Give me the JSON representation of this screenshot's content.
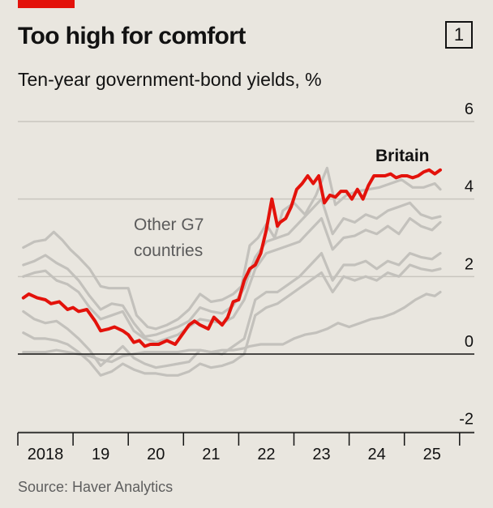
{
  "header": {
    "title": "Too high for comfort",
    "badge": "1",
    "subtitle": "Ten-year government-bond yields, %",
    "source": "Source: Haver Analytics"
  },
  "colors": {
    "britain": "#e3120b",
    "others": "#c3c1bc",
    "grid": "#c9c6bf",
    "zero": "#121212",
    "background": "#e9e6df"
  },
  "chart_data": {
    "type": "line",
    "title": "Too high for comfort",
    "subtitle": "Ten-year government-bond yields, %",
    "ylim": [
      -2,
      6
    ],
    "yticks": [
      -2,
      0,
      2,
      4,
      6
    ],
    "ytick_labels": [
      "-2",
      "0",
      "2",
      "4",
      "6"
    ],
    "xlim": [
      2018.0,
      2026.2
    ],
    "xticks": [
      2018,
      2019,
      2020,
      2021,
      2022,
      2023,
      2024,
      2025
    ],
    "xtick_labels": [
      "2018",
      "19",
      "20",
      "21",
      "22",
      "23",
      "24",
      "25"
    ],
    "grid": true,
    "legend": "none",
    "annotations": [
      "Britain",
      "Other G7 countries"
    ],
    "series": [
      {
        "name": "Britain",
        "highlight": true,
        "x": [
          2018.1,
          2018.2,
          2018.35,
          2018.5,
          2018.6,
          2018.75,
          2018.9,
          2019.0,
          2019.1,
          2019.25,
          2019.4,
          2019.5,
          2019.65,
          2019.75,
          2019.9,
          2020.0,
          2020.1,
          2020.2,
          2020.3,
          2020.4,
          2020.55,
          2020.7,
          2020.85,
          2021.0,
          2021.1,
          2021.2,
          2021.3,
          2021.45,
          2021.55,
          2021.7,
          2021.8,
          2021.9,
          2022.0,
          2022.1,
          2022.2,
          2022.3,
          2022.4,
          2022.5,
          2022.6,
          2022.7,
          2022.75,
          2022.85,
          2022.95,
          2023.05,
          2023.15,
          2023.25,
          2023.35,
          2023.45,
          2023.55,
          2023.65,
          2023.75,
          2023.85,
          2023.95,
          2024.05,
          2024.15,
          2024.25,
          2024.35,
          2024.45,
          2024.55,
          2024.65,
          2024.75,
          2024.85,
          2024.95,
          2025.05,
          2025.15,
          2025.25,
          2025.35,
          2025.45,
          2025.55,
          2025.65
        ],
        "values": [
          1.45,
          1.55,
          1.45,
          1.4,
          1.3,
          1.35,
          1.15,
          1.2,
          1.1,
          1.15,
          0.85,
          0.6,
          0.65,
          0.7,
          0.6,
          0.5,
          0.3,
          0.35,
          0.2,
          0.25,
          0.25,
          0.35,
          0.25,
          0.55,
          0.75,
          0.85,
          0.75,
          0.65,
          0.95,
          0.75,
          0.95,
          1.35,
          1.4,
          1.9,
          2.2,
          2.3,
          2.6,
          3.2,
          4.0,
          3.3,
          3.4,
          3.5,
          3.8,
          4.25,
          4.4,
          4.6,
          4.4,
          4.6,
          3.9,
          4.1,
          4.05,
          4.2,
          4.2,
          4.0,
          4.25,
          4.0,
          4.35,
          4.6,
          4.6,
          4.6,
          4.65,
          4.55,
          4.6,
          4.6,
          4.55,
          4.6,
          4.7,
          4.75,
          4.65,
          4.75
        ]
      },
      {
        "name": "",
        "x": [
          2018.1,
          2018.3,
          2018.5,
          2018.65,
          2018.8,
          2018.95,
          2019.1,
          2019.3,
          2019.5,
          2019.65,
          2019.8,
          2020.0,
          2020.15,
          2020.35,
          2020.5,
          2020.7,
          2020.9,
          2021.1,
          2021.3,
          2021.5,
          2021.7,
          2021.9,
          2022.05,
          2022.2,
          2022.35,
          2022.5,
          2022.65,
          2022.8,
          2023.0,
          2023.2,
          2023.4,
          2023.6,
          2023.75,
          2023.95,
          2024.15,
          2024.35,
          2024.55,
          2024.75,
          2024.95,
          2025.15,
          2025.35,
          2025.55,
          2025.65
        ],
        "values": [
          2.75,
          2.9,
          2.95,
          3.15,
          2.95,
          2.7,
          2.5,
          2.2,
          1.75,
          1.7,
          1.7,
          1.7,
          1.0,
          0.7,
          0.65,
          0.75,
          0.9,
          1.15,
          1.55,
          1.35,
          1.4,
          1.55,
          1.75,
          2.8,
          3.0,
          3.35,
          3.0,
          3.7,
          3.9,
          3.6,
          4.1,
          4.8,
          3.85,
          4.1,
          4.2,
          4.25,
          4.3,
          4.4,
          4.5,
          4.3,
          4.3,
          4.4,
          4.25
        ]
      },
      {
        "name": "",
        "x": [
          2018.1,
          2018.3,
          2018.5,
          2018.7,
          2018.9,
          2019.1,
          2019.3,
          2019.5,
          2019.7,
          2019.9,
          2020.1,
          2020.3,
          2020.5,
          2020.7,
          2020.9,
          2021.1,
          2021.3,
          2021.5,
          2021.7,
          2021.9,
          2022.1,
          2022.3,
          2022.5,
          2022.7,
          2022.9,
          2023.1,
          2023.3,
          2023.5,
          2023.7,
          2023.9,
          2024.1,
          2024.3,
          2024.5,
          2024.7,
          2024.9,
          2025.1,
          2025.3,
          2025.5,
          2025.65
        ],
        "values": [
          2.3,
          2.4,
          2.55,
          2.35,
          2.2,
          1.9,
          1.5,
          1.15,
          1.3,
          1.25,
          0.8,
          0.45,
          0.5,
          0.6,
          0.7,
          0.85,
          1.2,
          1.1,
          1.05,
          1.25,
          1.7,
          2.5,
          2.9,
          3.0,
          3.1,
          3.4,
          3.7,
          4.0,
          3.1,
          3.5,
          3.4,
          3.6,
          3.5,
          3.7,
          3.8,
          3.9,
          3.6,
          3.5,
          3.55
        ]
      },
      {
        "name": "",
        "x": [
          2018.1,
          2018.3,
          2018.5,
          2018.7,
          2018.9,
          2019.1,
          2019.3,
          2019.5,
          2019.7,
          2019.9,
          2020.1,
          2020.3,
          2020.5,
          2020.7,
          2020.9,
          2021.1,
          2021.3,
          2021.5,
          2021.7,
          2021.9,
          2022.1,
          2022.3,
          2022.5,
          2022.7,
          2022.9,
          2023.1,
          2023.3,
          2023.5,
          2023.7,
          2023.9,
          2024.1,
          2024.3,
          2024.5,
          2024.7,
          2024.9,
          2025.1,
          2025.3,
          2025.5,
          2025.65
        ],
        "values": [
          2.0,
          2.1,
          2.15,
          1.9,
          1.8,
          1.6,
          1.2,
          0.9,
          1.0,
          1.1,
          0.6,
          0.4,
          0.3,
          0.4,
          0.5,
          0.7,
          0.9,
          0.85,
          0.8,
          0.95,
          1.4,
          2.2,
          2.6,
          2.7,
          2.8,
          2.9,
          3.2,
          3.5,
          2.7,
          3.0,
          3.05,
          3.2,
          3.1,
          3.3,
          3.1,
          3.5,
          3.3,
          3.2,
          3.4
        ]
      },
      {
        "name": "",
        "x": [
          2018.1,
          2018.3,
          2018.5,
          2018.7,
          2018.9,
          2019.1,
          2019.3,
          2019.5,
          2019.7,
          2019.9,
          2020.1,
          2020.3,
          2020.5,
          2020.7,
          2020.9,
          2021.1,
          2021.3,
          2021.5,
          2021.7,
          2021.9,
          2022.1,
          2022.3,
          2022.5,
          2022.7,
          2022.9,
          2023.1,
          2023.3,
          2023.5,
          2023.7,
          2023.9,
          2024.1,
          2024.3,
          2024.5,
          2024.7,
          2024.9,
          2025.1,
          2025.3,
          2025.5,
          2025.65
        ],
        "values": [
          1.1,
          0.9,
          0.8,
          0.85,
          0.65,
          0.4,
          0.1,
          -0.3,
          -0.05,
          0.2,
          -0.1,
          -0.25,
          -0.35,
          -0.3,
          -0.25,
          -0.2,
          0.1,
          0.05,
          0.0,
          0.2,
          0.4,
          1.4,
          1.6,
          1.6,
          1.8,
          2.0,
          2.3,
          2.6,
          1.9,
          2.3,
          2.3,
          2.4,
          2.2,
          2.4,
          2.3,
          2.6,
          2.5,
          2.45,
          2.6
        ]
      },
      {
        "name": "",
        "x": [
          2018.1,
          2018.3,
          2018.5,
          2018.7,
          2018.9,
          2019.1,
          2019.3,
          2019.5,
          2019.7,
          2019.9,
          2020.1,
          2020.3,
          2020.5,
          2020.7,
          2020.9,
          2021.1,
          2021.3,
          2021.5,
          2021.7,
          2021.9,
          2022.1,
          2022.3,
          2022.5,
          2022.7,
          2022.9,
          2023.1,
          2023.3,
          2023.5,
          2023.7,
          2023.9,
          2024.1,
          2024.3,
          2024.5,
          2024.7,
          2024.9,
          2025.1,
          2025.3,
          2025.5,
          2025.65
        ],
        "values": [
          0.55,
          0.4,
          0.4,
          0.35,
          0.25,
          0.05,
          -0.2,
          -0.55,
          -0.45,
          -0.25,
          -0.4,
          -0.5,
          -0.5,
          -0.55,
          -0.55,
          -0.45,
          -0.25,
          -0.35,
          -0.3,
          -0.2,
          0.0,
          1.0,
          1.2,
          1.3,
          1.5,
          1.7,
          1.9,
          2.1,
          1.6,
          2.0,
          1.9,
          2.0,
          1.9,
          2.1,
          2.0,
          2.3,
          2.2,
          2.15,
          2.2
        ]
      },
      {
        "name": "",
        "x": [
          2018.1,
          2018.3,
          2018.5,
          2018.7,
          2018.9,
          2019.1,
          2019.3,
          2019.5,
          2019.7,
          2019.9,
          2020.1,
          2020.3,
          2020.5,
          2020.7,
          2020.9,
          2021.1,
          2021.3,
          2021.5,
          2021.7,
          2021.9,
          2022.1,
          2022.2,
          2022.4,
          2022.6,
          2022.8,
          2023.0,
          2023.2,
          2023.4,
          2023.6,
          2023.8,
          2024.0,
          2024.2,
          2024.4,
          2024.6,
          2024.8,
          2025.0,
          2025.2,
          2025.4,
          2025.55,
          2025.65
        ],
        "values": [
          0.05,
          0.05,
          0.05,
          0.1,
          0.05,
          0.0,
          -0.05,
          -0.15,
          -0.2,
          -0.05,
          0.0,
          0.05,
          0.05,
          0.05,
          0.05,
          0.1,
          0.1,
          0.05,
          0.1,
          0.1,
          0.15,
          0.2,
          0.25,
          0.25,
          0.25,
          0.4,
          0.5,
          0.55,
          0.65,
          0.8,
          0.7,
          0.8,
          0.9,
          0.95,
          1.05,
          1.2,
          1.4,
          1.55,
          1.5,
          1.6
        ]
      }
    ]
  }
}
